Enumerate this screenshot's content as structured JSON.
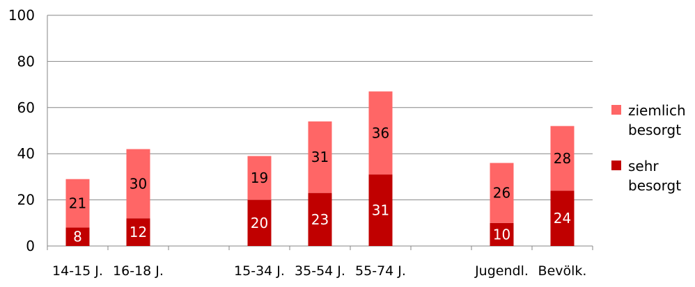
{
  "chart_data": {
    "type": "bar",
    "stacked": true,
    "categories": [
      "14-15 J.",
      "16-18 J.",
      "",
      "15-34 J.",
      "35-54 J.",
      "55-74 J.",
      "",
      "Jugendl.",
      "Bevölk."
    ],
    "series": [
      {
        "name": "sehr besorgt",
        "color": "#C00000",
        "label_color": "#FFFFFF",
        "values": [
          8,
          12,
          null,
          20,
          23,
          31,
          null,
          10,
          24
        ]
      },
      {
        "name": "ziemlich besorgt",
        "color": "#FF6666",
        "label_color": "#000000",
        "values": [
          21,
          30,
          null,
          19,
          31,
          36,
          null,
          26,
          28
        ]
      }
    ],
    "legend_order": [
      "ziemlich besorgt",
      "sehr besorgt"
    ],
    "legend_lines": {
      "ziemlich besorgt": [
        "ziemlich",
        "besorgt"
      ],
      "sehr besorgt": [
        "sehr",
        "besorgt"
      ]
    },
    "y_ticks": [
      "0",
      "20",
      "40",
      "60",
      "80",
      "100"
    ],
    "ylim": [
      0,
      100
    ],
    "grid": true,
    "legend_position": "right",
    "title": "",
    "xlabel": "",
    "ylabel": ""
  }
}
